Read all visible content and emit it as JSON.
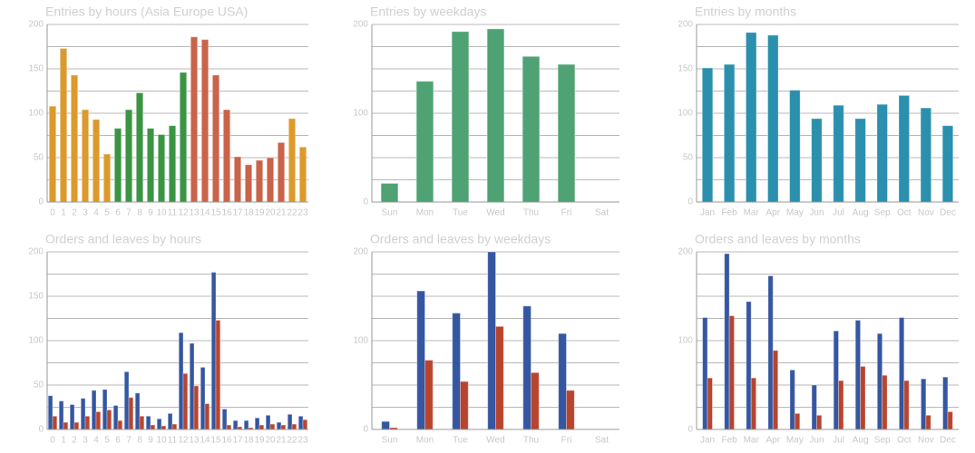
{
  "chart_data": [
    {
      "type": "bar",
      "title": "Entries by hours (Asia Europe USA)",
      "categories": [
        "0",
        "1",
        "2",
        "3",
        "4",
        "5",
        "6",
        "7",
        "8",
        "9",
        "10",
        "11",
        "12",
        "13",
        "14",
        "15",
        "16",
        "17",
        "18",
        "19",
        "20",
        "21",
        "22",
        "23"
      ],
      "values": [
        108,
        173,
        143,
        104,
        93,
        54,
        83,
        104,
        123,
        83,
        76,
        86,
        146,
        186,
        183,
        143,
        104,
        51,
        42,
        47,
        50,
        67,
        94,
        62
      ],
      "colors": [
        "#dc9a2c",
        "#dc9a2c",
        "#dc9a2c",
        "#dc9a2c",
        "#dc9a2c",
        "#dc9a2c",
        "#3a9444",
        "#3a9444",
        "#3a9444",
        "#3a9444",
        "#3a9444",
        "#3a9444",
        "#3a9444",
        "#c9634a",
        "#c9634a",
        "#c9634a",
        "#c9634a",
        "#c9634a",
        "#c9634a",
        "#c9634a",
        "#c9634a",
        "#c9634a",
        "#dc9a2c",
        "#dc9a2c"
      ],
      "ylim": [
        0,
        200
      ],
      "yticks": [
        0,
        50,
        100,
        150,
        200
      ],
      "grid": true
    },
    {
      "type": "bar",
      "title": "Entries by weekdays",
      "categories": [
        "Sun",
        "Mon",
        "Tue",
        "Wed",
        "Thu",
        "Fri",
        "Sat"
      ],
      "values": [
        21,
        136,
        192,
        195,
        164,
        155,
        0
      ],
      "color": "#4fa273",
      "ylim": [
        0,
        200
      ],
      "yticks": [
        0,
        100,
        200
      ],
      "grid": true
    },
    {
      "type": "bar",
      "title": "Entries by months",
      "categories": [
        "Jan",
        "Feb",
        "Mar",
        "Apr",
        "May",
        "Jun",
        "Jul",
        "Aug",
        "Sep",
        "Oct",
        "Nov",
        "Dec"
      ],
      "values": [
        151,
        155,
        191,
        188,
        126,
        94,
        109,
        94,
        110,
        120,
        106,
        86
      ],
      "color": "#2b8fae",
      "ylim": [
        0,
        200
      ],
      "yticks": [
        0,
        50,
        100,
        150,
        200
      ],
      "grid": true
    },
    {
      "type": "grouped-bar",
      "title": "Orders and leaves by hours",
      "categories": [
        "0",
        "1",
        "2",
        "3",
        "4",
        "5",
        "6",
        "7",
        "8",
        "9",
        "10",
        "11",
        "12",
        "13",
        "14",
        "15",
        "16",
        "17",
        "18",
        "19",
        "20",
        "21",
        "22",
        "23"
      ],
      "series": [
        {
          "name": "Orders",
          "color": "#3556a0",
          "values": [
            38,
            32,
            28,
            35,
            44,
            45,
            27,
            65,
            41,
            15,
            12,
            18,
            109,
            97,
            70,
            177,
            23,
            10,
            10,
            13,
            16,
            8,
            17,
            15
          ]
        },
        {
          "name": "Leaves",
          "color": "#b8442e",
          "values": [
            15,
            8,
            8,
            15,
            20,
            22,
            10,
            36,
            15,
            5,
            4,
            6,
            63,
            49,
            29,
            123,
            5,
            3,
            2,
            5,
            6,
            5,
            6,
            11
          ]
        }
      ],
      "ylim": [
        0,
        200
      ],
      "yticks": [
        0,
        50,
        100,
        150,
        200
      ],
      "grid": true
    },
    {
      "type": "grouped-bar",
      "title": "Orders and leaves by weekdays",
      "categories": [
        "Sun",
        "Mon",
        "Tue",
        "Wed",
        "Thu",
        "Fri",
        "Sat"
      ],
      "series": [
        {
          "name": "Orders",
          "color": "#3556a0",
          "values": [
            9,
            156,
            131,
            200,
            139,
            108,
            0
          ]
        },
        {
          "name": "Leaves",
          "color": "#b8442e",
          "values": [
            2,
            78,
            54,
            116,
            64,
            44,
            0
          ]
        }
      ],
      "ylim": [
        0,
        200
      ],
      "yticks": [
        0,
        100,
        200
      ],
      "grid": true
    },
    {
      "type": "grouped-bar",
      "title": "Orders and leaves by months",
      "categories": [
        "Jan",
        "Feb",
        "Mar",
        "Apr",
        "May",
        "Jun",
        "Jul",
        "Aug",
        "Sep",
        "Oct",
        "Nov",
        "Dec"
      ],
      "series": [
        {
          "name": "Orders",
          "color": "#3556a0",
          "values": [
            126,
            198,
            144,
            173,
            67,
            50,
            111,
            123,
            108,
            126,
            57,
            59
          ]
        },
        {
          "name": "Leaves",
          "color": "#b8442e",
          "values": [
            58,
            128,
            58,
            89,
            18,
            16,
            55,
            71,
            61,
            55,
            16,
            20
          ]
        }
      ],
      "ylim": [
        0,
        200
      ],
      "yticks": [
        0,
        100,
        200
      ],
      "grid": true
    }
  ]
}
